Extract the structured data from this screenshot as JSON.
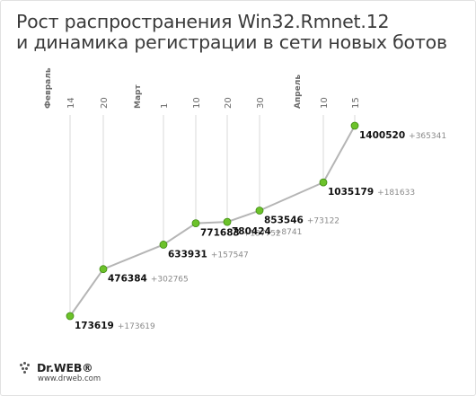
{
  "title": {
    "line1": "Рост распространения Win32.Rmnet.12",
    "line2": "и динамика регистрации в сети новых ботов"
  },
  "logo": {
    "brand": "Dr.WEB®",
    "url": "www.drweb.com"
  },
  "chart_data": {
    "type": "line",
    "ticks": [
      {
        "label": "Февраль",
        "month": true
      },
      {
        "label": "14"
      },
      {
        "label": "20"
      },
      {
        "label": "Март",
        "month": true
      },
      {
        "label": "1"
      },
      {
        "label": "10"
      },
      {
        "label": "20"
      },
      {
        "label": "30"
      },
      {
        "label": "Апрель",
        "month": true
      },
      {
        "label": "10"
      },
      {
        "label": "15"
      }
    ],
    "points": [
      {
        "date": "14 Февраль",
        "total": 173619,
        "total_label": "173619",
        "delta_label": "+173619"
      },
      {
        "date": "20 Февраль",
        "total": 476384,
        "total_label": "476384",
        "delta_label": "+302765"
      },
      {
        "date": "1 Март",
        "total": 633931,
        "total_label": "633931",
        "delta_label": "+157547"
      },
      {
        "date": "10 Март",
        "total": 771683,
        "total_label": "771683",
        "delta_label": "+137752"
      },
      {
        "date": "20 Март",
        "total": 780424,
        "total_label": "780424",
        "delta_label": "+8741"
      },
      {
        "date": "30 Март",
        "total": 853546,
        "total_label": "853546",
        "delta_label": "+73122"
      },
      {
        "date": "10 Апрель",
        "total": 1035179,
        "total_label": "1035179",
        "delta_label": "+181633"
      },
      {
        "date": "15 Апрель",
        "total": 1400520,
        "total_label": "1400520",
        "delta_label": "+365341"
      }
    ],
    "colors": {
      "line": "#b5b5b5",
      "marker_fill": "#6cc22a",
      "marker_stroke": "#3f8a12",
      "gridline": "#d9d9d9",
      "value_text": "#111111",
      "delta_text": "#8a8a8a",
      "tick_text": "#6a6a6a"
    },
    "grid": true
  }
}
